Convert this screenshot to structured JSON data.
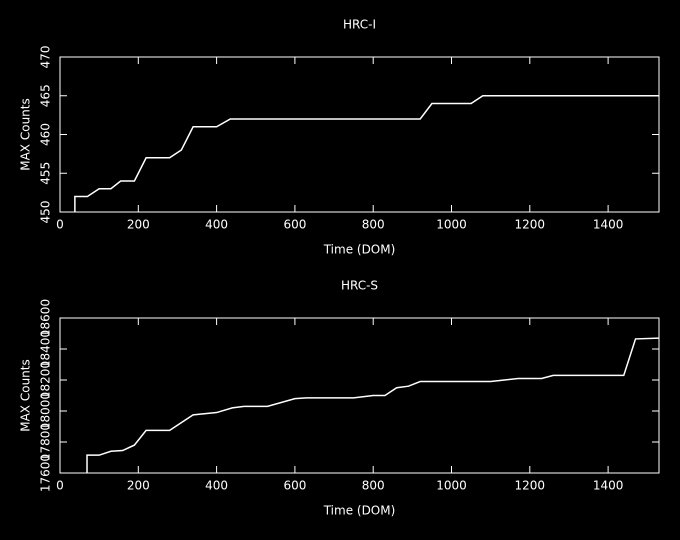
{
  "chart_data": [
    {
      "type": "line",
      "title": "HRC-I",
      "x_label": "Time (DOM)",
      "y_label": "MAX Counts",
      "xlim": [
        0,
        1530
      ],
      "xticks": [
        0,
        200,
        400,
        600,
        800,
        1000,
        1200,
        1400
      ],
      "ylim": [
        450,
        470
      ],
      "yticks": [
        450,
        455,
        460,
        465,
        470
      ],
      "series": [
        {
          "color": "#ffffff",
          "x": [
            38,
            38,
            70,
            100,
            130,
            155,
            190,
            220,
            280,
            310,
            340,
            400,
            435,
            920,
            950,
            1050,
            1080,
            1530
          ],
          "values": [
            450,
            452,
            452,
            453,
            453,
            454,
            454,
            457,
            457,
            458,
            461,
            461,
            462,
            462,
            464,
            464,
            465,
            465
          ]
        }
      ]
    },
    {
      "type": "line",
      "title": "HRC-S",
      "x_label": "Time (DOM)",
      "y_label": "MAX Counts",
      "xlim": [
        0,
        1530
      ],
      "xticks": [
        0,
        200,
        400,
        600,
        800,
        1000,
        1200,
        1400
      ],
      "ylim": [
        17600,
        18600
      ],
      "yticks": [
        17600,
        17800,
        18000,
        18200,
        18400,
        18600
      ],
      "series": [
        {
          "color": "#ffffff",
          "x": [
            69,
            69,
            100,
            130,
            160,
            190,
            220,
            280,
            340,
            400,
            440,
            470,
            530,
            600,
            630,
            750,
            800,
            830,
            860,
            890,
            920,
            1100,
            1170,
            1230,
            1260,
            1440,
            1470,
            1530
          ],
          "values": [
            17600,
            17715,
            17715,
            17740,
            17745,
            17780,
            17875,
            17875,
            17975,
            17990,
            18020,
            18030,
            18030,
            18080,
            18085,
            18085,
            18100,
            18100,
            18150,
            18160,
            18190,
            18190,
            18210,
            18210,
            18230,
            18230,
            18465,
            18470
          ]
        }
      ]
    }
  ]
}
